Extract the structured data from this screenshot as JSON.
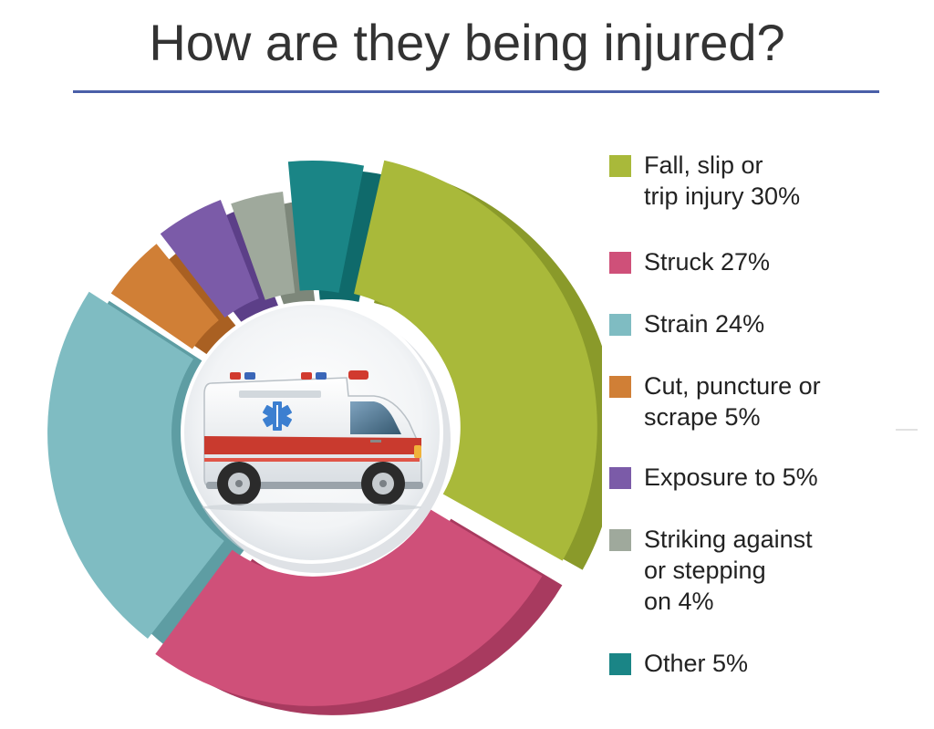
{
  "title": "How are they being injured?",
  "chart_data": {
    "type": "pie",
    "title": "How are they being injured?",
    "categories": [
      "Fall, slip or trip injury",
      "Struck",
      "Strain",
      "Cut, puncture or scrape",
      "Exposure to",
      "Striking against or stepping on",
      "Other"
    ],
    "values": [
      30,
      27,
      24,
      5,
      5,
      4,
      5
    ],
    "colors": [
      "#a9b93a",
      "#cf5079",
      "#7fbcc2",
      "#d07f36",
      "#7b5ba8",
      "#9fa99c",
      "#1a8586"
    ],
    "side_colors": [
      "#8a9a2a",
      "#a83a5f",
      "#5e9da3",
      "#a96022",
      "#5c3f88",
      "#7d877a",
      "#0f6a6b"
    ],
    "legend_position": "right",
    "center_image": "ambulance"
  },
  "legend": [
    {
      "label": "Fall, slip or\ntrip injury 30%",
      "color": "#a9b93a"
    },
    {
      "label": "Struck 27%",
      "color": "#cf5079"
    },
    {
      "label": "Strain 24%",
      "color": "#7fbcc2"
    },
    {
      "label": "Cut, puncture or\nscrape 5%",
      "color": "#d07f36"
    },
    {
      "label": "Exposure to 5%",
      "color": "#7b5ba8"
    },
    {
      "label": "Striking against\nor stepping\non 4%",
      "color": "#9fa99c"
    },
    {
      "label": "Other 5%",
      "color": "#1a8586"
    }
  ]
}
